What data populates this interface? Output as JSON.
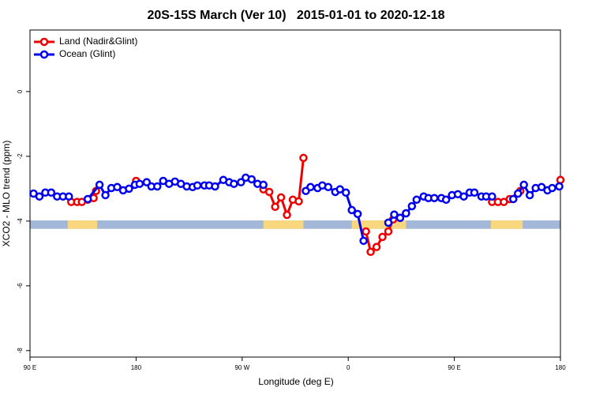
{
  "chart_data": {
    "type": "line",
    "title": "20S-15S March (Ver 10)   2015-01-01 to 2020-12-18",
    "xlabel": "Longitude (deg E)",
    "ylabel": "XCO2 - MLO trend (ppm)",
    "xlim": [
      90,
      540
    ],
    "ylim": [
      -8.2,
      1.9
    ],
    "xticks": [
      {
        "value": 90,
        "label": "90 E"
      },
      {
        "value": 180,
        "label": "180"
      },
      {
        "value": 270,
        "label": "90 W"
      },
      {
        "value": 360,
        "label": "0"
      },
      {
        "value": 450,
        "label": "90 E"
      },
      {
        "value": 540,
        "label": "180"
      }
    ],
    "yticks": [
      0,
      -2,
      -4,
      -6,
      -8
    ],
    "legend": "top-left",
    "land_mask": {
      "ylim": [
        -4.24,
        -3.98
      ],
      "land_color": "#f9d77e",
      "ocean_color": "#a3b8d8",
      "land": [
        [
          122,
          147
        ],
        [
          288,
          322
        ],
        [
          363,
          409
        ],
        [
          481,
          508
        ]
      ]
    },
    "series": [
      {
        "name": "Land (Nadir&Glint)",
        "color": "#ee0000",
        "x": [
          125,
          130,
          134,
          139,
          144,
          146,
          null,
          180,
          null,
          288,
          293,
          298,
          303,
          308,
          313,
          318,
          322,
          null,
          375,
          379,
          384,
          389,
          394,
          398,
          404,
          409,
          null,
          482,
          487,
          492,
          497,
          506,
          null,
          540
        ],
        "values": [
          -3.41,
          -3.41,
          -3.41,
          -3.34,
          -3.29,
          -3.07,
          null,
          -2.76,
          null,
          -3.02,
          -3.1,
          -3.56,
          -3.27,
          -3.81,
          -3.34,
          -3.39,
          -2.05,
          null,
          -4.32,
          -4.95,
          -4.8,
          -4.49,
          -4.32,
          -3.95,
          -3.9,
          -3.76,
          null,
          -3.41,
          -3.41,
          -3.41,
          -3.32,
          -3.07,
          null,
          -2.73
        ]
      },
      {
        "name": "Ocean (Glint)",
        "color": "#0000ee",
        "x": [
          93,
          98,
          103,
          108,
          113,
          118,
          123,
          null,
          139,
          149,
          154,
          159,
          164,
          169,
          174,
          179,
          183,
          189,
          193,
          198,
          203,
          208,
          213,
          218,
          223,
          228,
          232,
          238,
          242,
          247,
          254,
          259,
          263,
          269,
          273,
          278,
          283,
          288,
          null,
          324,
          328,
          334,
          338,
          343,
          349,
          353,
          358,
          363,
          368,
          373,
          null,
          394,
          399,
          404,
          409,
          414,
          418,
          424,
          428,
          433,
          439,
          443,
          448,
          453,
          458,
          463,
          467,
          473,
          477,
          482,
          null,
          500,
          504,
          509,
          514,
          519,
          524,
          529,
          533,
          539
        ],
        "values": [
          -3.15,
          -3.24,
          -3.12,
          -3.12,
          -3.24,
          -3.24,
          -3.24,
          null,
          -3.32,
          -2.88,
          -3.2,
          -2.98,
          -2.95,
          -3.05,
          -3.0,
          -2.88,
          -2.85,
          -2.8,
          -2.93,
          -2.93,
          -2.76,
          -2.85,
          -2.78,
          -2.85,
          -2.93,
          -2.95,
          -2.9,
          -2.9,
          -2.9,
          -2.93,
          -2.73,
          -2.8,
          -2.85,
          -2.8,
          -2.66,
          -2.71,
          -2.85,
          -2.88,
          null,
          -3.07,
          -2.95,
          -2.98,
          -2.9,
          -2.95,
          -3.1,
          -3.02,
          -3.12,
          -3.66,
          -3.78,
          -4.61,
          null,
          -4.05,
          -3.8,
          -3.9,
          -3.76,
          -3.54,
          -3.34,
          -3.24,
          -3.29,
          -3.29,
          -3.29,
          -3.34,
          -3.2,
          -3.17,
          -3.24,
          -3.12,
          -3.12,
          -3.24,
          -3.24,
          -3.24,
          null,
          -3.32,
          -3.15,
          -2.88,
          -3.2,
          -2.98,
          -2.95,
          -3.05,
          -2.98,
          -2.93
        ]
      }
    ]
  }
}
